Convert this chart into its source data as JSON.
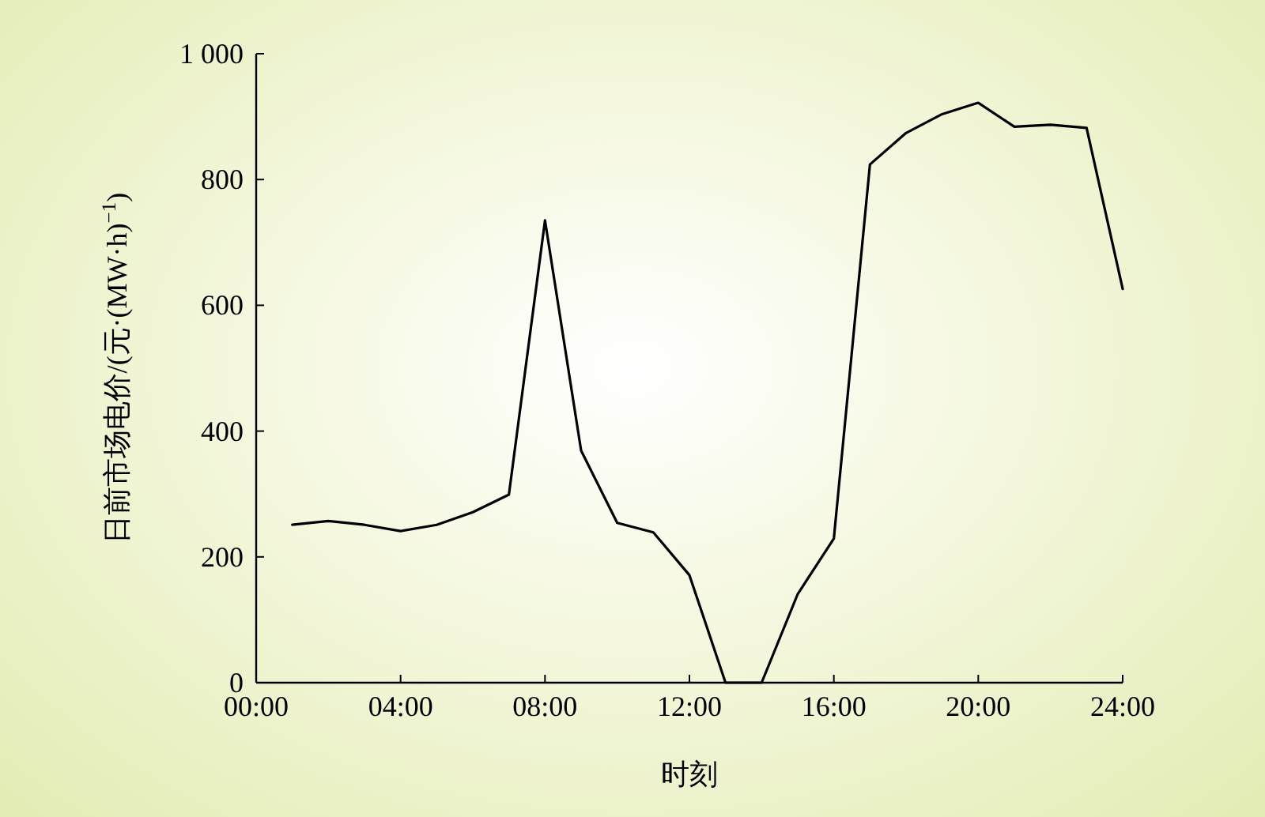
{
  "chart_data": {
    "type": "line",
    "xlabel": "时刻",
    "ylabel": "日前市场电价/(元·(MW·h)$^{−1}$)",
    "x": [
      1,
      2,
      3,
      4,
      5,
      6,
      7,
      8,
      9,
      10,
      11,
      12,
      13,
      14,
      15,
      16,
      17,
      18,
      19,
      20,
      21,
      22,
      23,
      24
    ],
    "values": [
      251,
      257,
      251,
      241,
      251,
      271,
      299,
      735,
      369,
      254,
      239,
      171,
      0,
      0,
      141,
      229,
      824,
      874,
      904,
      922,
      884,
      887,
      882,
      626
    ],
    "color": "#000000",
    "xlim": [
      0,
      24
    ],
    "xticks": [
      {
        "value": 0,
        "label": "00:00"
      },
      {
        "value": 4,
        "label": "04:00"
      },
      {
        "value": 8,
        "label": "08:00"
      },
      {
        "value": 12,
        "label": "12:00"
      },
      {
        "value": 16,
        "label": "16:00"
      },
      {
        "value": 20,
        "label": "20:00"
      },
      {
        "value": 24,
        "label": "24:00"
      }
    ],
    "ylim": [
      0,
      1000
    ],
    "yticks": [
      0,
      200,
      400,
      600,
      800,
      {
        "value": 1000,
        "label": "1 000"
      }
    ]
  }
}
